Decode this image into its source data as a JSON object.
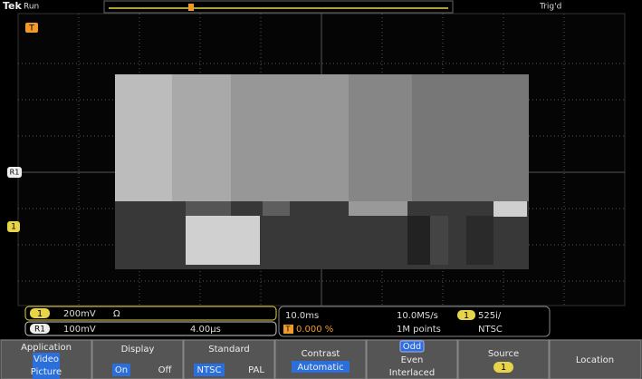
{
  "header": {
    "brand": "Tek",
    "state": "Run",
    "trigger_status": "Trig'd"
  },
  "markers": {
    "trigger": "T",
    "reference": "R1",
    "channel": "1"
  },
  "status": {
    "ch1": {
      "label": "1",
      "scale": "200mV",
      "coupling": "Ω"
    },
    "ref1": {
      "label": "R1",
      "scale": "100mV",
      "position": "4.00µs"
    },
    "timebase": "10.0ms",
    "trigger_pos": {
      "icon": "T",
      "value": "0.000 %"
    },
    "sample_rate": "10.0MS/s",
    "record_length": "1M points",
    "trigger_source": "1",
    "video_format": "525i/",
    "video_standard": "NTSC"
  },
  "menu": [
    {
      "title": "Application",
      "options": [
        "Video",
        "Picture"
      ]
    },
    {
      "title": "Display",
      "options": [
        "On",
        "Off"
      ]
    },
    {
      "title": "Standard",
      "options": [
        "NTSC",
        "PAL"
      ]
    },
    {
      "title": "Contrast",
      "options": [
        "Automatic"
      ]
    },
    {
      "options": [
        "Odd",
        "Even",
        "Interlaced"
      ]
    },
    {
      "title": "Source",
      "options": [
        "1"
      ]
    },
    {
      "title": "Location"
    }
  ]
}
